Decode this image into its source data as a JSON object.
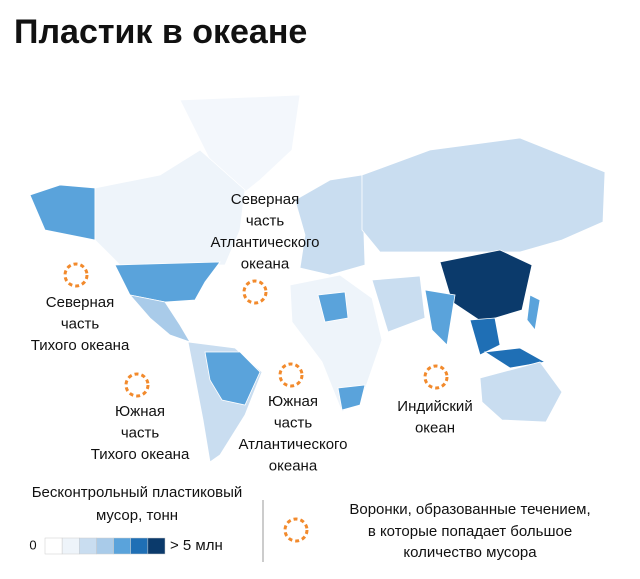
{
  "title": "Пластик в океане",
  "gyres": [
    {
      "lines": [
        "Северная",
        "часть",
        "Атлантического",
        "океана"
      ]
    },
    {
      "lines": [
        "Северная",
        "часть",
        "Тихого океана"
      ]
    },
    {
      "lines": [
        "Южная",
        "часть",
        "Тихого океана"
      ]
    },
    {
      "lines": [
        "Южная",
        "часть",
        "Атлантического",
        "океана"
      ]
    },
    {
      "lines": [
        "Индийский",
        "океан"
      ]
    }
  ],
  "legend": {
    "scale_title": [
      "Бесконтрольный пластиковый",
      "мусор, тонн"
    ],
    "scale_min": "0",
    "scale_max": "> 5 млн",
    "scale_colors": [
      "#ffffff",
      "#eef4fa",
      "#c9ddf0",
      "#a9cbe9",
      "#5aa3db",
      "#1f6fb5",
      "#0b3a6b"
    ],
    "gyre_note": [
      "Воронки, образованные течением,",
      "в которые попадает большое",
      "количество мусора"
    ]
  }
}
